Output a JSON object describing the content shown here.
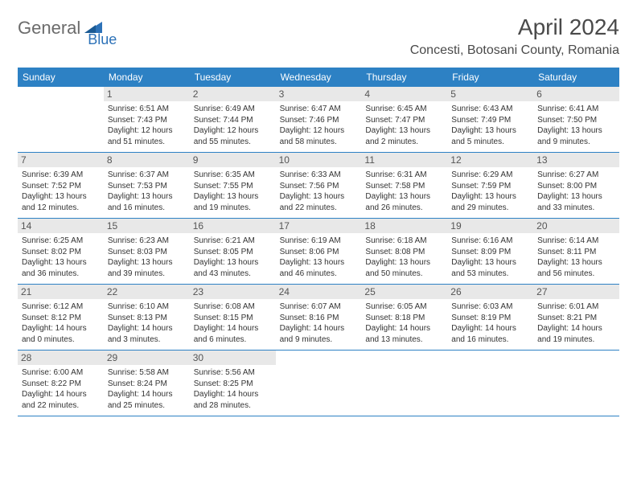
{
  "logo": {
    "part1": "General",
    "part2": "Blue"
  },
  "title": "April 2024",
  "location": "Concesti, Botosani County, Romania",
  "dayNames": [
    "Sunday",
    "Monday",
    "Tuesday",
    "Wednesday",
    "Thursday",
    "Friday",
    "Saturday"
  ],
  "colors": {
    "headerBar": "#2d81c4",
    "dayNumBg": "#e8e8e8",
    "text": "#333333",
    "logoGray": "#6b6b6b",
    "logoBlue": "#2d72b8"
  },
  "weeks": [
    [
      {
        "empty": true
      },
      {
        "n": "1",
        "sr": "Sunrise: 6:51 AM",
        "ss": "Sunset: 7:43 PM",
        "d1": "Daylight: 12 hours",
        "d2": "and 51 minutes."
      },
      {
        "n": "2",
        "sr": "Sunrise: 6:49 AM",
        "ss": "Sunset: 7:44 PM",
        "d1": "Daylight: 12 hours",
        "d2": "and 55 minutes."
      },
      {
        "n": "3",
        "sr": "Sunrise: 6:47 AM",
        "ss": "Sunset: 7:46 PM",
        "d1": "Daylight: 12 hours",
        "d2": "and 58 minutes."
      },
      {
        "n": "4",
        "sr": "Sunrise: 6:45 AM",
        "ss": "Sunset: 7:47 PM",
        "d1": "Daylight: 13 hours",
        "d2": "and 2 minutes."
      },
      {
        "n": "5",
        "sr": "Sunrise: 6:43 AM",
        "ss": "Sunset: 7:49 PM",
        "d1": "Daylight: 13 hours",
        "d2": "and 5 minutes."
      },
      {
        "n": "6",
        "sr": "Sunrise: 6:41 AM",
        "ss": "Sunset: 7:50 PM",
        "d1": "Daylight: 13 hours",
        "d2": "and 9 minutes."
      }
    ],
    [
      {
        "n": "7",
        "sr": "Sunrise: 6:39 AM",
        "ss": "Sunset: 7:52 PM",
        "d1": "Daylight: 13 hours",
        "d2": "and 12 minutes."
      },
      {
        "n": "8",
        "sr": "Sunrise: 6:37 AM",
        "ss": "Sunset: 7:53 PM",
        "d1": "Daylight: 13 hours",
        "d2": "and 16 minutes."
      },
      {
        "n": "9",
        "sr": "Sunrise: 6:35 AM",
        "ss": "Sunset: 7:55 PM",
        "d1": "Daylight: 13 hours",
        "d2": "and 19 minutes."
      },
      {
        "n": "10",
        "sr": "Sunrise: 6:33 AM",
        "ss": "Sunset: 7:56 PM",
        "d1": "Daylight: 13 hours",
        "d2": "and 22 minutes."
      },
      {
        "n": "11",
        "sr": "Sunrise: 6:31 AM",
        "ss": "Sunset: 7:58 PM",
        "d1": "Daylight: 13 hours",
        "d2": "and 26 minutes."
      },
      {
        "n": "12",
        "sr": "Sunrise: 6:29 AM",
        "ss": "Sunset: 7:59 PM",
        "d1": "Daylight: 13 hours",
        "d2": "and 29 minutes."
      },
      {
        "n": "13",
        "sr": "Sunrise: 6:27 AM",
        "ss": "Sunset: 8:00 PM",
        "d1": "Daylight: 13 hours",
        "d2": "and 33 minutes."
      }
    ],
    [
      {
        "n": "14",
        "sr": "Sunrise: 6:25 AM",
        "ss": "Sunset: 8:02 PM",
        "d1": "Daylight: 13 hours",
        "d2": "and 36 minutes."
      },
      {
        "n": "15",
        "sr": "Sunrise: 6:23 AM",
        "ss": "Sunset: 8:03 PM",
        "d1": "Daylight: 13 hours",
        "d2": "and 39 minutes."
      },
      {
        "n": "16",
        "sr": "Sunrise: 6:21 AM",
        "ss": "Sunset: 8:05 PM",
        "d1": "Daylight: 13 hours",
        "d2": "and 43 minutes."
      },
      {
        "n": "17",
        "sr": "Sunrise: 6:19 AM",
        "ss": "Sunset: 8:06 PM",
        "d1": "Daylight: 13 hours",
        "d2": "and 46 minutes."
      },
      {
        "n": "18",
        "sr": "Sunrise: 6:18 AM",
        "ss": "Sunset: 8:08 PM",
        "d1": "Daylight: 13 hours",
        "d2": "and 50 minutes."
      },
      {
        "n": "19",
        "sr": "Sunrise: 6:16 AM",
        "ss": "Sunset: 8:09 PM",
        "d1": "Daylight: 13 hours",
        "d2": "and 53 minutes."
      },
      {
        "n": "20",
        "sr": "Sunrise: 6:14 AM",
        "ss": "Sunset: 8:11 PM",
        "d1": "Daylight: 13 hours",
        "d2": "and 56 minutes."
      }
    ],
    [
      {
        "n": "21",
        "sr": "Sunrise: 6:12 AM",
        "ss": "Sunset: 8:12 PM",
        "d1": "Daylight: 14 hours",
        "d2": "and 0 minutes."
      },
      {
        "n": "22",
        "sr": "Sunrise: 6:10 AM",
        "ss": "Sunset: 8:13 PM",
        "d1": "Daylight: 14 hours",
        "d2": "and 3 minutes."
      },
      {
        "n": "23",
        "sr": "Sunrise: 6:08 AM",
        "ss": "Sunset: 8:15 PM",
        "d1": "Daylight: 14 hours",
        "d2": "and 6 minutes."
      },
      {
        "n": "24",
        "sr": "Sunrise: 6:07 AM",
        "ss": "Sunset: 8:16 PM",
        "d1": "Daylight: 14 hours",
        "d2": "and 9 minutes."
      },
      {
        "n": "25",
        "sr": "Sunrise: 6:05 AM",
        "ss": "Sunset: 8:18 PM",
        "d1": "Daylight: 14 hours",
        "d2": "and 13 minutes."
      },
      {
        "n": "26",
        "sr": "Sunrise: 6:03 AM",
        "ss": "Sunset: 8:19 PM",
        "d1": "Daylight: 14 hours",
        "d2": "and 16 minutes."
      },
      {
        "n": "27",
        "sr": "Sunrise: 6:01 AM",
        "ss": "Sunset: 8:21 PM",
        "d1": "Daylight: 14 hours",
        "d2": "and 19 minutes."
      }
    ],
    [
      {
        "n": "28",
        "sr": "Sunrise: 6:00 AM",
        "ss": "Sunset: 8:22 PM",
        "d1": "Daylight: 14 hours",
        "d2": "and 22 minutes."
      },
      {
        "n": "29",
        "sr": "Sunrise: 5:58 AM",
        "ss": "Sunset: 8:24 PM",
        "d1": "Daylight: 14 hours",
        "d2": "and 25 minutes."
      },
      {
        "n": "30",
        "sr": "Sunrise: 5:56 AM",
        "ss": "Sunset: 8:25 PM",
        "d1": "Daylight: 14 hours",
        "d2": "and 28 minutes."
      },
      {
        "empty": true
      },
      {
        "empty": true
      },
      {
        "empty": true
      },
      {
        "empty": true
      }
    ]
  ]
}
